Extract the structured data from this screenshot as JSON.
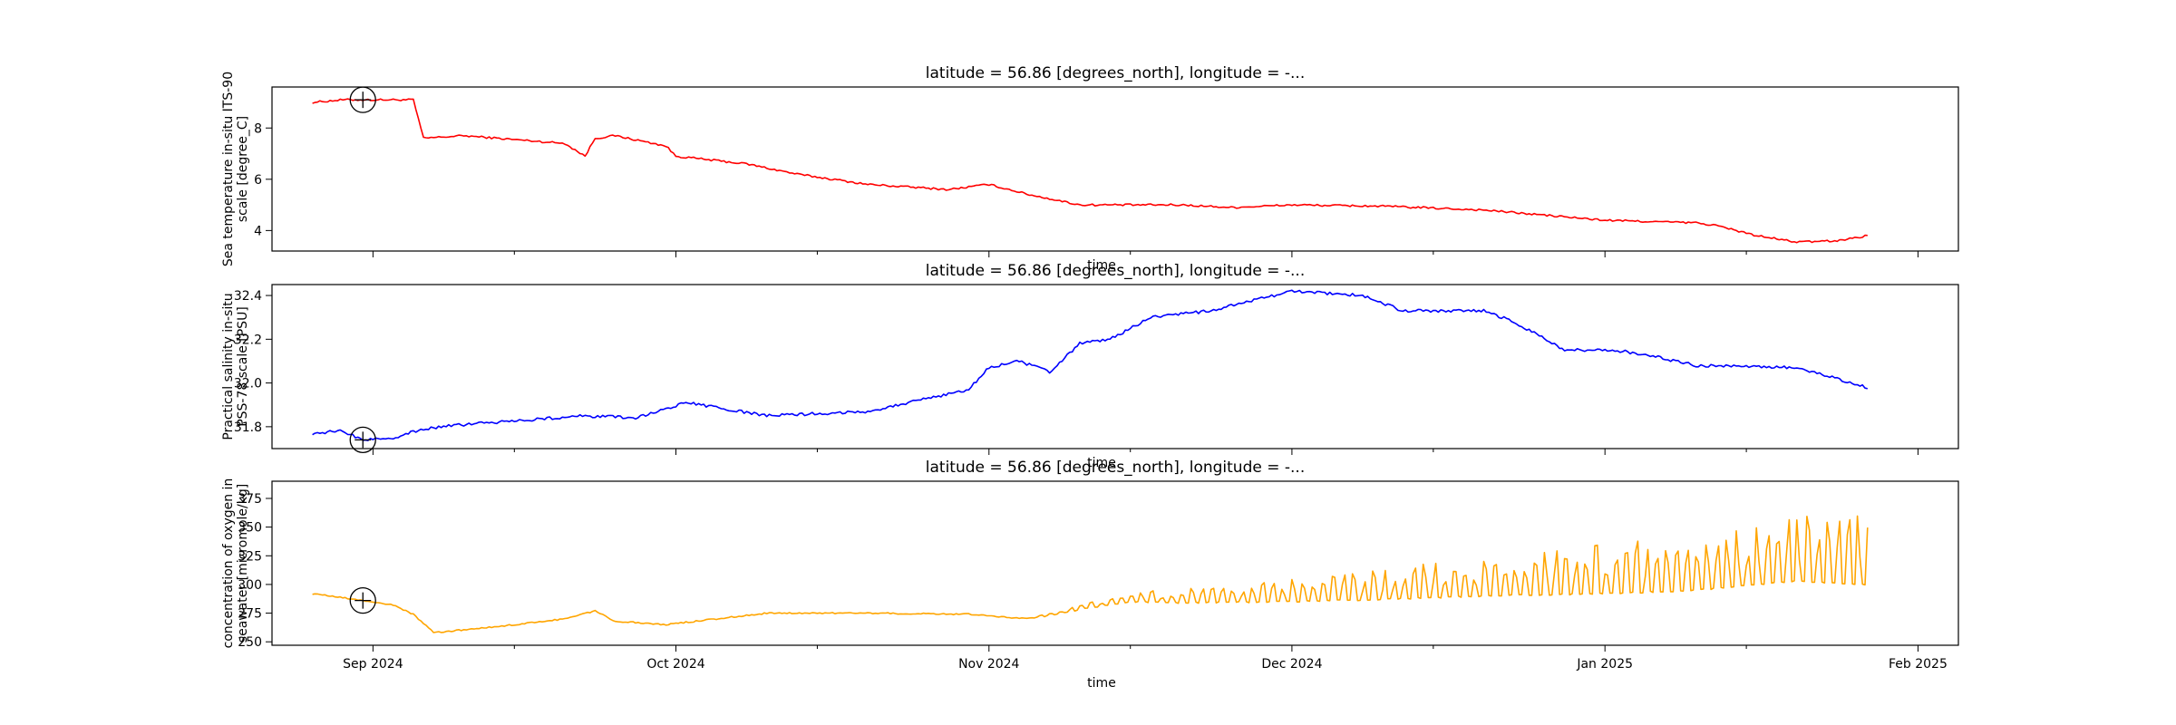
{
  "chart_data": [
    {
      "type": "line",
      "title": "latitude = 56.86 [degrees_north], longitude = -...",
      "xlabel": "time",
      "ylabel": [
        "Sea temperature in-situ ITS-90",
        "scale [degree_C]"
      ],
      "ylim": [
        3.2,
        9.6
      ],
      "yticks": [
        4,
        6,
        8
      ],
      "ytick_labels": [
        "4",
        "6",
        "8"
      ],
      "color": "#ff0000",
      "series": [
        {
          "x": [
            "2024-08-26",
            "2024-08-29",
            "2024-09-02",
            "2024-09-05",
            "2024-09-06",
            "2024-09-10",
            "2024-09-20",
            "2024-09-22",
            "2024-09-23",
            "2024-09-25",
            "2024-09-30",
            "2024-10-01",
            "2024-10-08",
            "2024-10-13",
            "2024-10-20",
            "2024-10-28",
            "2024-11-01",
            "2024-11-05",
            "2024-11-10",
            "2024-11-15",
            "2024-11-20",
            "2024-11-25",
            "2024-12-01",
            "2024-12-10",
            "2024-12-20",
            "2025-01-01",
            "2025-01-10",
            "2025-01-12",
            "2025-01-16",
            "2025-01-20",
            "2025-01-24",
            "2025-01-27"
          ],
          "values": [
            9.0,
            9.1,
            9.1,
            9.1,
            7.6,
            7.7,
            7.4,
            6.9,
            7.6,
            7.7,
            7.3,
            6.9,
            6.6,
            6.2,
            5.8,
            5.6,
            5.8,
            5.4,
            5.0,
            5.0,
            5.0,
            4.9,
            5.0,
            4.95,
            4.8,
            4.4,
            4.3,
            4.2,
            3.8,
            3.55,
            3.6,
            3.8
          ]
        }
      ]
    },
    {
      "type": "line",
      "title": "latitude = 56.86 [degrees_north], longitude = -...",
      "xlabel": "time",
      "ylabel": [
        "Practical salinity in-situ",
        "PSS-78 scale [PSU]"
      ],
      "ylim": [
        31.7,
        32.45
      ],
      "yticks": [
        31.8,
        32.0,
        32.2,
        32.4
      ],
      "ytick_labels": [
        "31.8",
        "32.0",
        "32.2",
        "32.4"
      ],
      "color": "#0000ff",
      "series": [
        {
          "x": [
            "2024-08-26",
            "2024-08-29",
            "2024-08-31",
            "2024-09-03",
            "2024-09-06",
            "2024-09-10",
            "2024-09-22",
            "2024-09-27",
            "2024-10-02",
            "2024-10-10",
            "2024-10-20",
            "2024-10-30",
            "2024-11-01",
            "2024-11-04",
            "2024-11-07",
            "2024-11-10",
            "2024-11-13",
            "2024-11-17",
            "2024-11-23",
            "2024-12-01",
            "2024-12-08",
            "2024-12-12",
            "2024-12-20",
            "2024-12-23",
            "2024-12-28",
            "2025-01-02",
            "2025-01-05",
            "2025-01-10",
            "2025-01-20",
            "2025-01-27"
          ],
          "values": [
            31.77,
            31.78,
            31.74,
            31.75,
            31.79,
            31.81,
            31.85,
            31.84,
            31.91,
            31.85,
            31.87,
            31.97,
            32.07,
            32.1,
            32.05,
            32.18,
            32.2,
            32.3,
            32.33,
            32.42,
            32.4,
            32.33,
            32.33,
            32.28,
            32.15,
            32.15,
            32.13,
            32.08,
            32.07,
            31.98
          ]
        }
      ]
    },
    {
      "type": "line",
      "title": "latitude = 56.86 [degrees_north], longitude = -...",
      "xlabel": "time",
      "ylabel": [
        "concentration of oxygen in",
        "seawater [micromole/kg]"
      ],
      "ylim": [
        247,
        390
      ],
      "yticks": [
        250,
        275,
        300,
        325,
        350,
        375
      ],
      "ytick_labels": [
        "250",
        "275",
        "300",
        "325",
        "350",
        "375"
      ],
      "xticks": [
        "2024-09-01",
        "2024-10-01",
        "2024-11-01",
        "2024-12-01",
        "2025-01-01",
        "2025-02-01"
      ],
      "xtick_labels": [
        "Sep 2024",
        "Oct 2024",
        "Nov 2024",
        "Dec 2024",
        "Jan 2025",
        "Feb 2025"
      ],
      "minor_xticks": [
        "2024-09-15",
        "2024-10-15",
        "2024-11-15",
        "2024-12-15",
        "2025-01-15"
      ],
      "color": "#ffa500",
      "series": [
        {
          "x": [
            "2024-08-26",
            "2024-08-31",
            "2024-09-03",
            "2024-09-05",
            "2024-09-07",
            "2024-09-12",
            "2024-09-20",
            "2024-09-23",
            "2024-09-25",
            "2024-09-30",
            "2024-10-10",
            "2024-10-20",
            "2024-10-30",
            "2024-11-05",
            "2024-11-10",
            "2024-11-15",
            "2024-11-20",
            "2024-11-30",
            "2024-12-10",
            "2024-12-20",
            "2025-01-01",
            "2025-01-10",
            "2025-01-20",
            "2025-01-27"
          ],
          "values": [
            292,
            286,
            282,
            274,
            258,
            262,
            270,
            277,
            268,
            265,
            275,
            275,
            274,
            270,
            278,
            285,
            284,
            285,
            287,
            290,
            292,
            295,
            303,
            300
          ]
        }
      ]
    }
  ]
}
